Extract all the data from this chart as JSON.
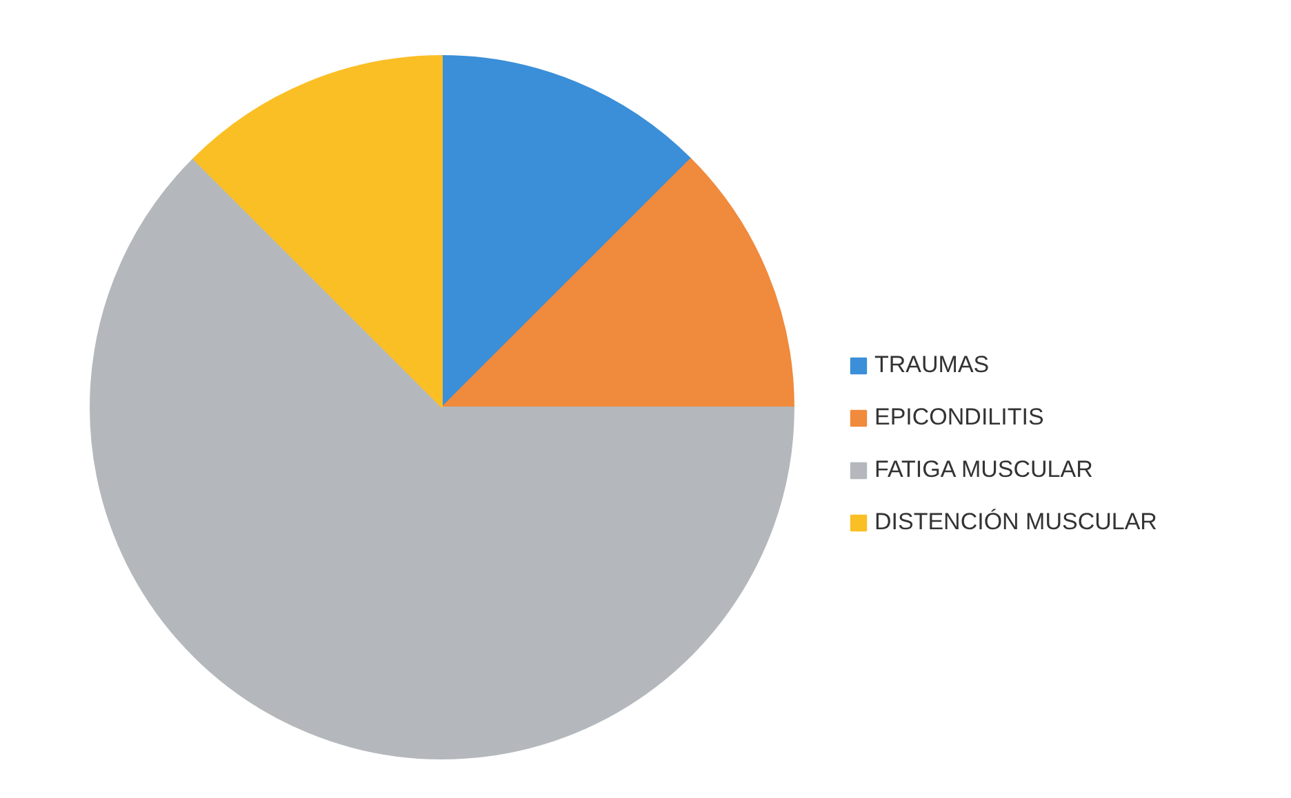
{
  "chart_data": {
    "type": "pie",
    "categories": [
      "TRAUMAS",
      "EPICONDILITIS",
      "FATIGA MUSCULAR",
      "DISTENCIÓN MUSCULAR"
    ],
    "values": [
      12.5,
      12.5,
      62.5,
      12.5
    ],
    "colors": [
      "#3a8fd8",
      "#f08a3c",
      "#b4b8bc",
      "#fbbf26"
    ],
    "legend": "right"
  }
}
